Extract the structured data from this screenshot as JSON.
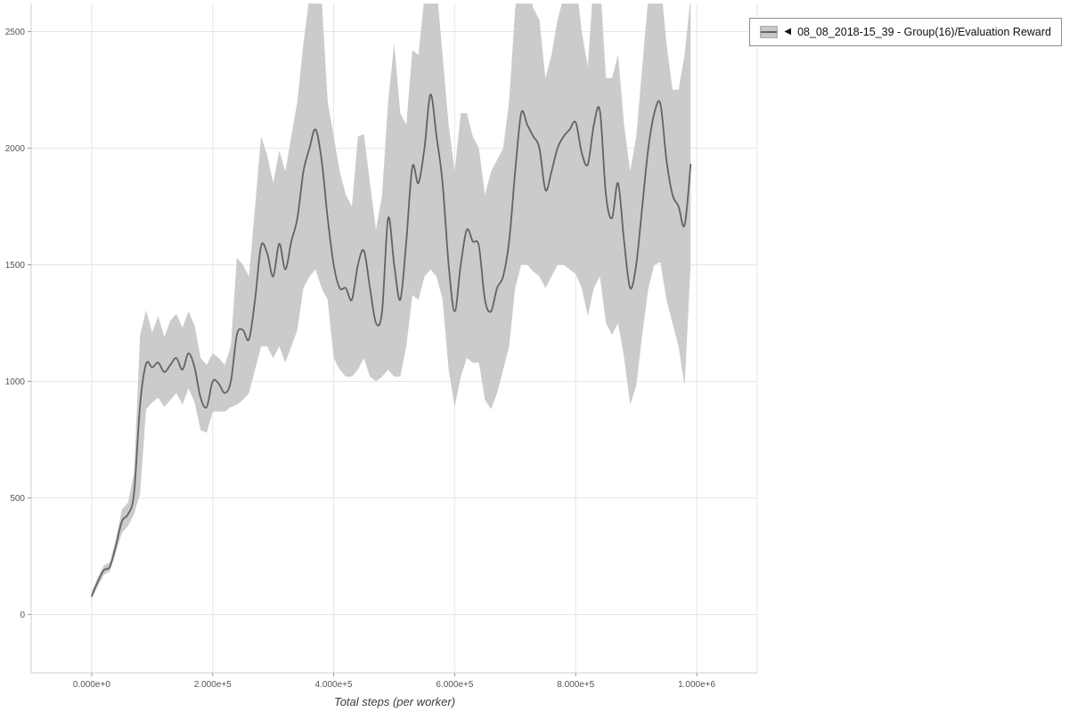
{
  "legend": {
    "marker": "◀",
    "series_label": "08_08_2018-15_39 - Group(16)/Evaluation Reward"
  },
  "chart_data": {
    "type": "line",
    "title": "",
    "xlabel": "Total steps (per worker)",
    "ylabel": "",
    "xlim": [
      -100000,
      1100000
    ],
    "ylim": [
      -250,
      2620
    ],
    "grid": true,
    "legend_position": "top-right",
    "x_ticks": [
      0,
      200000,
      400000,
      600000,
      800000,
      1000000
    ],
    "x_tick_labels": [
      "0.000e+0",
      "2.000e+5",
      "4.000e+5",
      "6.000e+5",
      "8.000e+5",
      "1.000e+6"
    ],
    "y_ticks": [
      0,
      500,
      1000,
      1500,
      2000,
      2500
    ],
    "y_tick_labels": [
      "0",
      "500",
      "1000",
      "1500",
      "2000",
      "2500"
    ],
    "line_color": "#636363",
    "band_color": "#c7c7c7",
    "grid_color": "#e6e6e6",
    "axis_color": "#cfcfcf",
    "series": [
      {
        "name": "08_08_2018-15_39 - Group(16)/Evaluation Reward",
        "x": [
          0,
          10000,
          20000,
          30000,
          40000,
          50000,
          60000,
          70000,
          80000,
          90000,
          100000,
          110000,
          120000,
          130000,
          140000,
          150000,
          160000,
          170000,
          180000,
          190000,
          200000,
          210000,
          220000,
          230000,
          240000,
          250000,
          260000,
          270000,
          280000,
          290000,
          300000,
          310000,
          320000,
          330000,
          340000,
          350000,
          360000,
          370000,
          380000,
          390000,
          400000,
          410000,
          420000,
          430000,
          440000,
          450000,
          460000,
          470000,
          480000,
          490000,
          500000,
          510000,
          520000,
          530000,
          540000,
          550000,
          560000,
          570000,
          580000,
          590000,
          600000,
          610000,
          620000,
          630000,
          640000,
          650000,
          660000,
          670000,
          680000,
          690000,
          700000,
          710000,
          720000,
          730000,
          740000,
          750000,
          760000,
          770000,
          780000,
          790000,
          800000,
          810000,
          820000,
          830000,
          840000,
          850000,
          860000,
          870000,
          880000,
          890000,
          900000,
          910000,
          920000,
          930000,
          940000,
          950000,
          960000,
          970000,
          980000,
          990000
        ],
        "mean": [
          80,
          140,
          190,
          205,
          295,
          400,
          430,
          520,
          900,
          1075,
          1060,
          1080,
          1040,
          1070,
          1100,
          1050,
          1120,
          1060,
          930,
          890,
          1000,
          990,
          950,
          1000,
          1200,
          1220,
          1180,
          1350,
          1580,
          1550,
          1450,
          1590,
          1480,
          1600,
          1700,
          1900,
          2000,
          2080,
          1950,
          1700,
          1500,
          1400,
          1400,
          1350,
          1500,
          1560,
          1400,
          1250,
          1300,
          1700,
          1500,
          1350,
          1600,
          1920,
          1850,
          2000,
          2230,
          2050,
          1850,
          1500,
          1300,
          1500,
          1650,
          1600,
          1580,
          1350,
          1300,
          1400,
          1450,
          1600,
          1900,
          2150,
          2100,
          2050,
          2000,
          1820,
          1900,
          2000,
          2050,
          2080,
          2110,
          1980,
          1930,
          2100,
          2160,
          1800,
          1700,
          1850,
          1600,
          1400,
          1500,
          1750,
          2000,
          2150,
          2190,
          1950,
          1800,
          1750,
          1670,
          1930
        ],
        "lower": [
          65,
          120,
          170,
          185,
          265,
          350,
          380,
          430,
          520,
          880,
          910,
          930,
          890,
          920,
          950,
          900,
          970,
          910,
          790,
          780,
          870,
          870,
          870,
          890,
          900,
          920,
          950,
          1050,
          1150,
          1150,
          1100,
          1150,
          1080,
          1150,
          1220,
          1400,
          1450,
          1480,
          1400,
          1350,
          1100,
          1050,
          1020,
          1020,
          1050,
          1100,
          1020,
          1000,
          1020,
          1050,
          1020,
          1020,
          1150,
          1370,
          1350,
          1450,
          1480,
          1450,
          1350,
          1050,
          890,
          1020,
          1100,
          1080,
          1080,
          920,
          880,
          950,
          1050,
          1150,
          1400,
          1500,
          1500,
          1470,
          1450,
          1400,
          1450,
          1500,
          1500,
          1480,
          1460,
          1400,
          1280,
          1400,
          1450,
          1250,
          1200,
          1250,
          1100,
          900,
          980,
          1200,
          1400,
          1500,
          1510,
          1350,
          1250,
          1150,
          980,
          1500
        ],
        "upper": [
          95,
          160,
          210,
          225,
          325,
          450,
          480,
          610,
          1200,
          1305,
          1210,
          1280,
          1190,
          1260,
          1290,
          1230,
          1300,
          1240,
          1100,
          1070,
          1120,
          1100,
          1070,
          1150,
          1530,
          1500,
          1450,
          1750,
          2050,
          1970,
          1850,
          1990,
          1900,
          2050,
          2200,
          2450,
          2650,
          2730,
          2650,
          2200,
          2050,
          1900,
          1800,
          1750,
          2050,
          2060,
          1850,
          1650,
          1800,
          2200,
          2450,
          2150,
          2100,
          2420,
          2400,
          2650,
          2730,
          2700,
          2400,
          2100,
          1900,
          2150,
          2150,
          2050,
          2000,
          1800,
          1900,
          1950,
          2000,
          2200,
          2600,
          2730,
          2700,
          2600,
          2550,
          2300,
          2400,
          2550,
          2650,
          2730,
          2730,
          2500,
          2350,
          2730,
          2730,
          2300,
          2300,
          2400,
          2100,
          1900,
          2050,
          2350,
          2650,
          2730,
          2730,
          2450,
          2250,
          2250,
          2400,
          2650
        ]
      }
    ]
  }
}
